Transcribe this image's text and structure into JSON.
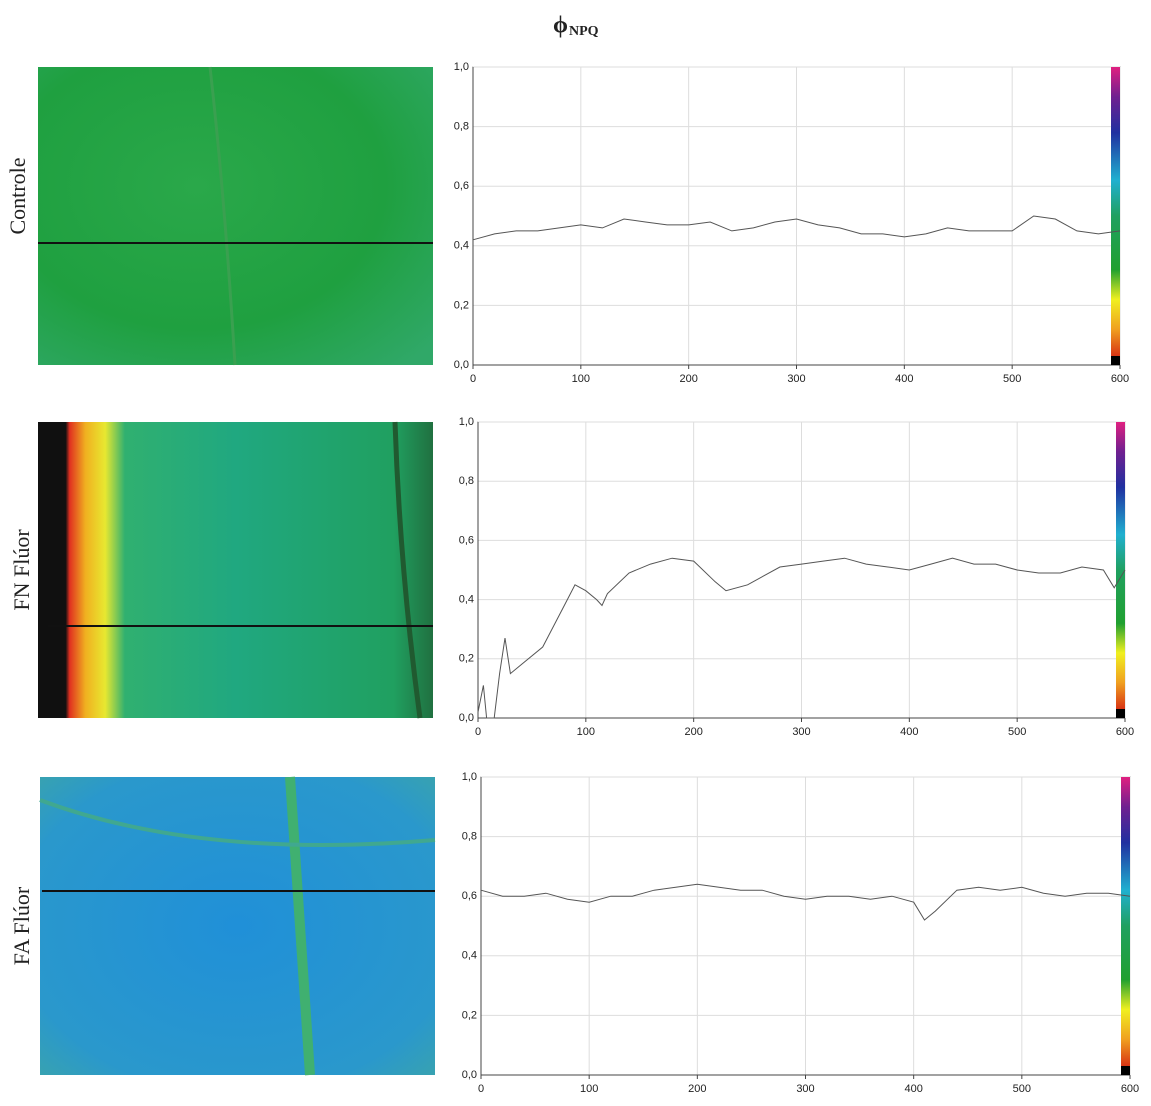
{
  "title": "ϕ",
  "title_subscript": "NPQ",
  "chart_data": [
    {
      "type": "line",
      "label": "Controle",
      "grid": true,
      "line_color": "#555555",
      "xlim": [
        0,
        600
      ],
      "xticks": [
        0,
        100,
        200,
        300,
        400,
        500,
        600
      ],
      "ylim": [
        0,
        1
      ],
      "yticks": [
        {
          "value": 0,
          "label": "0,0"
        },
        {
          "value": 0.2,
          "label": "0,2"
        },
        {
          "value": 0.4,
          "label": "0,4"
        },
        {
          "value": 0.6,
          "label": "0,6"
        },
        {
          "value": 0.8,
          "label": "0,8"
        },
        {
          "value": 1,
          "label": "1,0"
        }
      ],
      "x": [
        0,
        20,
        40,
        60,
        80,
        100,
        120,
        140,
        160,
        180,
        200,
        220,
        240,
        260,
        280,
        300,
        320,
        340,
        360,
        380,
        400,
        420,
        440,
        460,
        480,
        500,
        520,
        540,
        560,
        580,
        600
      ],
      "values": [
        0.42,
        0.44,
        0.45,
        0.45,
        0.46,
        0.47,
        0.46,
        0.49,
        0.48,
        0.47,
        0.47,
        0.48,
        0.45,
        0.46,
        0.48,
        0.49,
        0.47,
        0.46,
        0.44,
        0.44,
        0.43,
        0.44,
        0.46,
        0.45,
        0.45,
        0.45,
        0.5,
        0.49,
        0.45,
        0.44,
        0.45
      ]
    },
    {
      "type": "line",
      "label": "FN Flúor",
      "grid": true,
      "line_color": "#555555",
      "xlim": [
        0,
        600
      ],
      "xticks": [
        0,
        100,
        200,
        300,
        400,
        500,
        600
      ],
      "ylim": [
        0,
        1
      ],
      "yticks": [
        {
          "value": 0,
          "label": "0,0"
        },
        {
          "value": 0.2,
          "label": "0,2"
        },
        {
          "value": 0.4,
          "label": "0,4"
        },
        {
          "value": 0.6,
          "label": "0,6"
        },
        {
          "value": 0.8,
          "label": "0,8"
        },
        {
          "value": 1,
          "label": "1,0"
        }
      ],
      "x": [
        0,
        5,
        8,
        15,
        20,
        25,
        30,
        40,
        60,
        80,
        90,
        100,
        110,
        115,
        120,
        140,
        160,
        180,
        200,
        220,
        230,
        250,
        280,
        300,
        320,
        340,
        360,
        380,
        400,
        420,
        440,
        460,
        480,
        500,
        520,
        540,
        560,
        580,
        590,
        600
      ],
      "values": [
        0.02,
        0.11,
        0,
        0,
        0.15,
        0.27,
        0.15,
        0.18,
        0.24,
        0.38,
        0.45,
        0.43,
        0.4,
        0.38,
        0.42,
        0.49,
        0.52,
        0.54,
        0.53,
        0.46,
        0.43,
        0.45,
        0.51,
        0.52,
        0.53,
        0.54,
        0.52,
        0.51,
        0.5,
        0.52,
        0.54,
        0.52,
        0.52,
        0.5,
        0.49,
        0.49,
        0.51,
        0.5,
        0.44,
        0.5
      ]
    },
    {
      "type": "line",
      "label": "FA Flúor",
      "grid": true,
      "line_color": "#555555",
      "xlim": [
        0,
        600
      ],
      "xticks": [
        0,
        100,
        200,
        300,
        400,
        500,
        600
      ],
      "ylim": [
        0,
        1
      ],
      "yticks": [
        {
          "value": 0,
          "label": "0,0"
        },
        {
          "value": 0.2,
          "label": "0,2"
        },
        {
          "value": 0.4,
          "label": "0,4"
        },
        {
          "value": 0.6,
          "label": "0,6"
        },
        {
          "value": 0.8,
          "label": "0,8"
        },
        {
          "value": 1,
          "label": "1,0"
        }
      ],
      "x": [
        0,
        20,
        40,
        60,
        80,
        100,
        120,
        140,
        160,
        180,
        200,
        220,
        240,
        260,
        280,
        300,
        320,
        340,
        360,
        380,
        400,
        410,
        420,
        440,
        460,
        480,
        500,
        520,
        540,
        560,
        580,
        600
      ],
      "values": [
        0.62,
        0.6,
        0.6,
        0.61,
        0.59,
        0.58,
        0.6,
        0.6,
        0.62,
        0.63,
        0.64,
        0.63,
        0.62,
        0.62,
        0.6,
        0.59,
        0.6,
        0.6,
        0.59,
        0.6,
        0.58,
        0.52,
        0.55,
        0.62,
        0.63,
        0.62,
        0.63,
        0.61,
        0.6,
        0.61,
        0.61,
        0.6
      ]
    }
  ]
}
